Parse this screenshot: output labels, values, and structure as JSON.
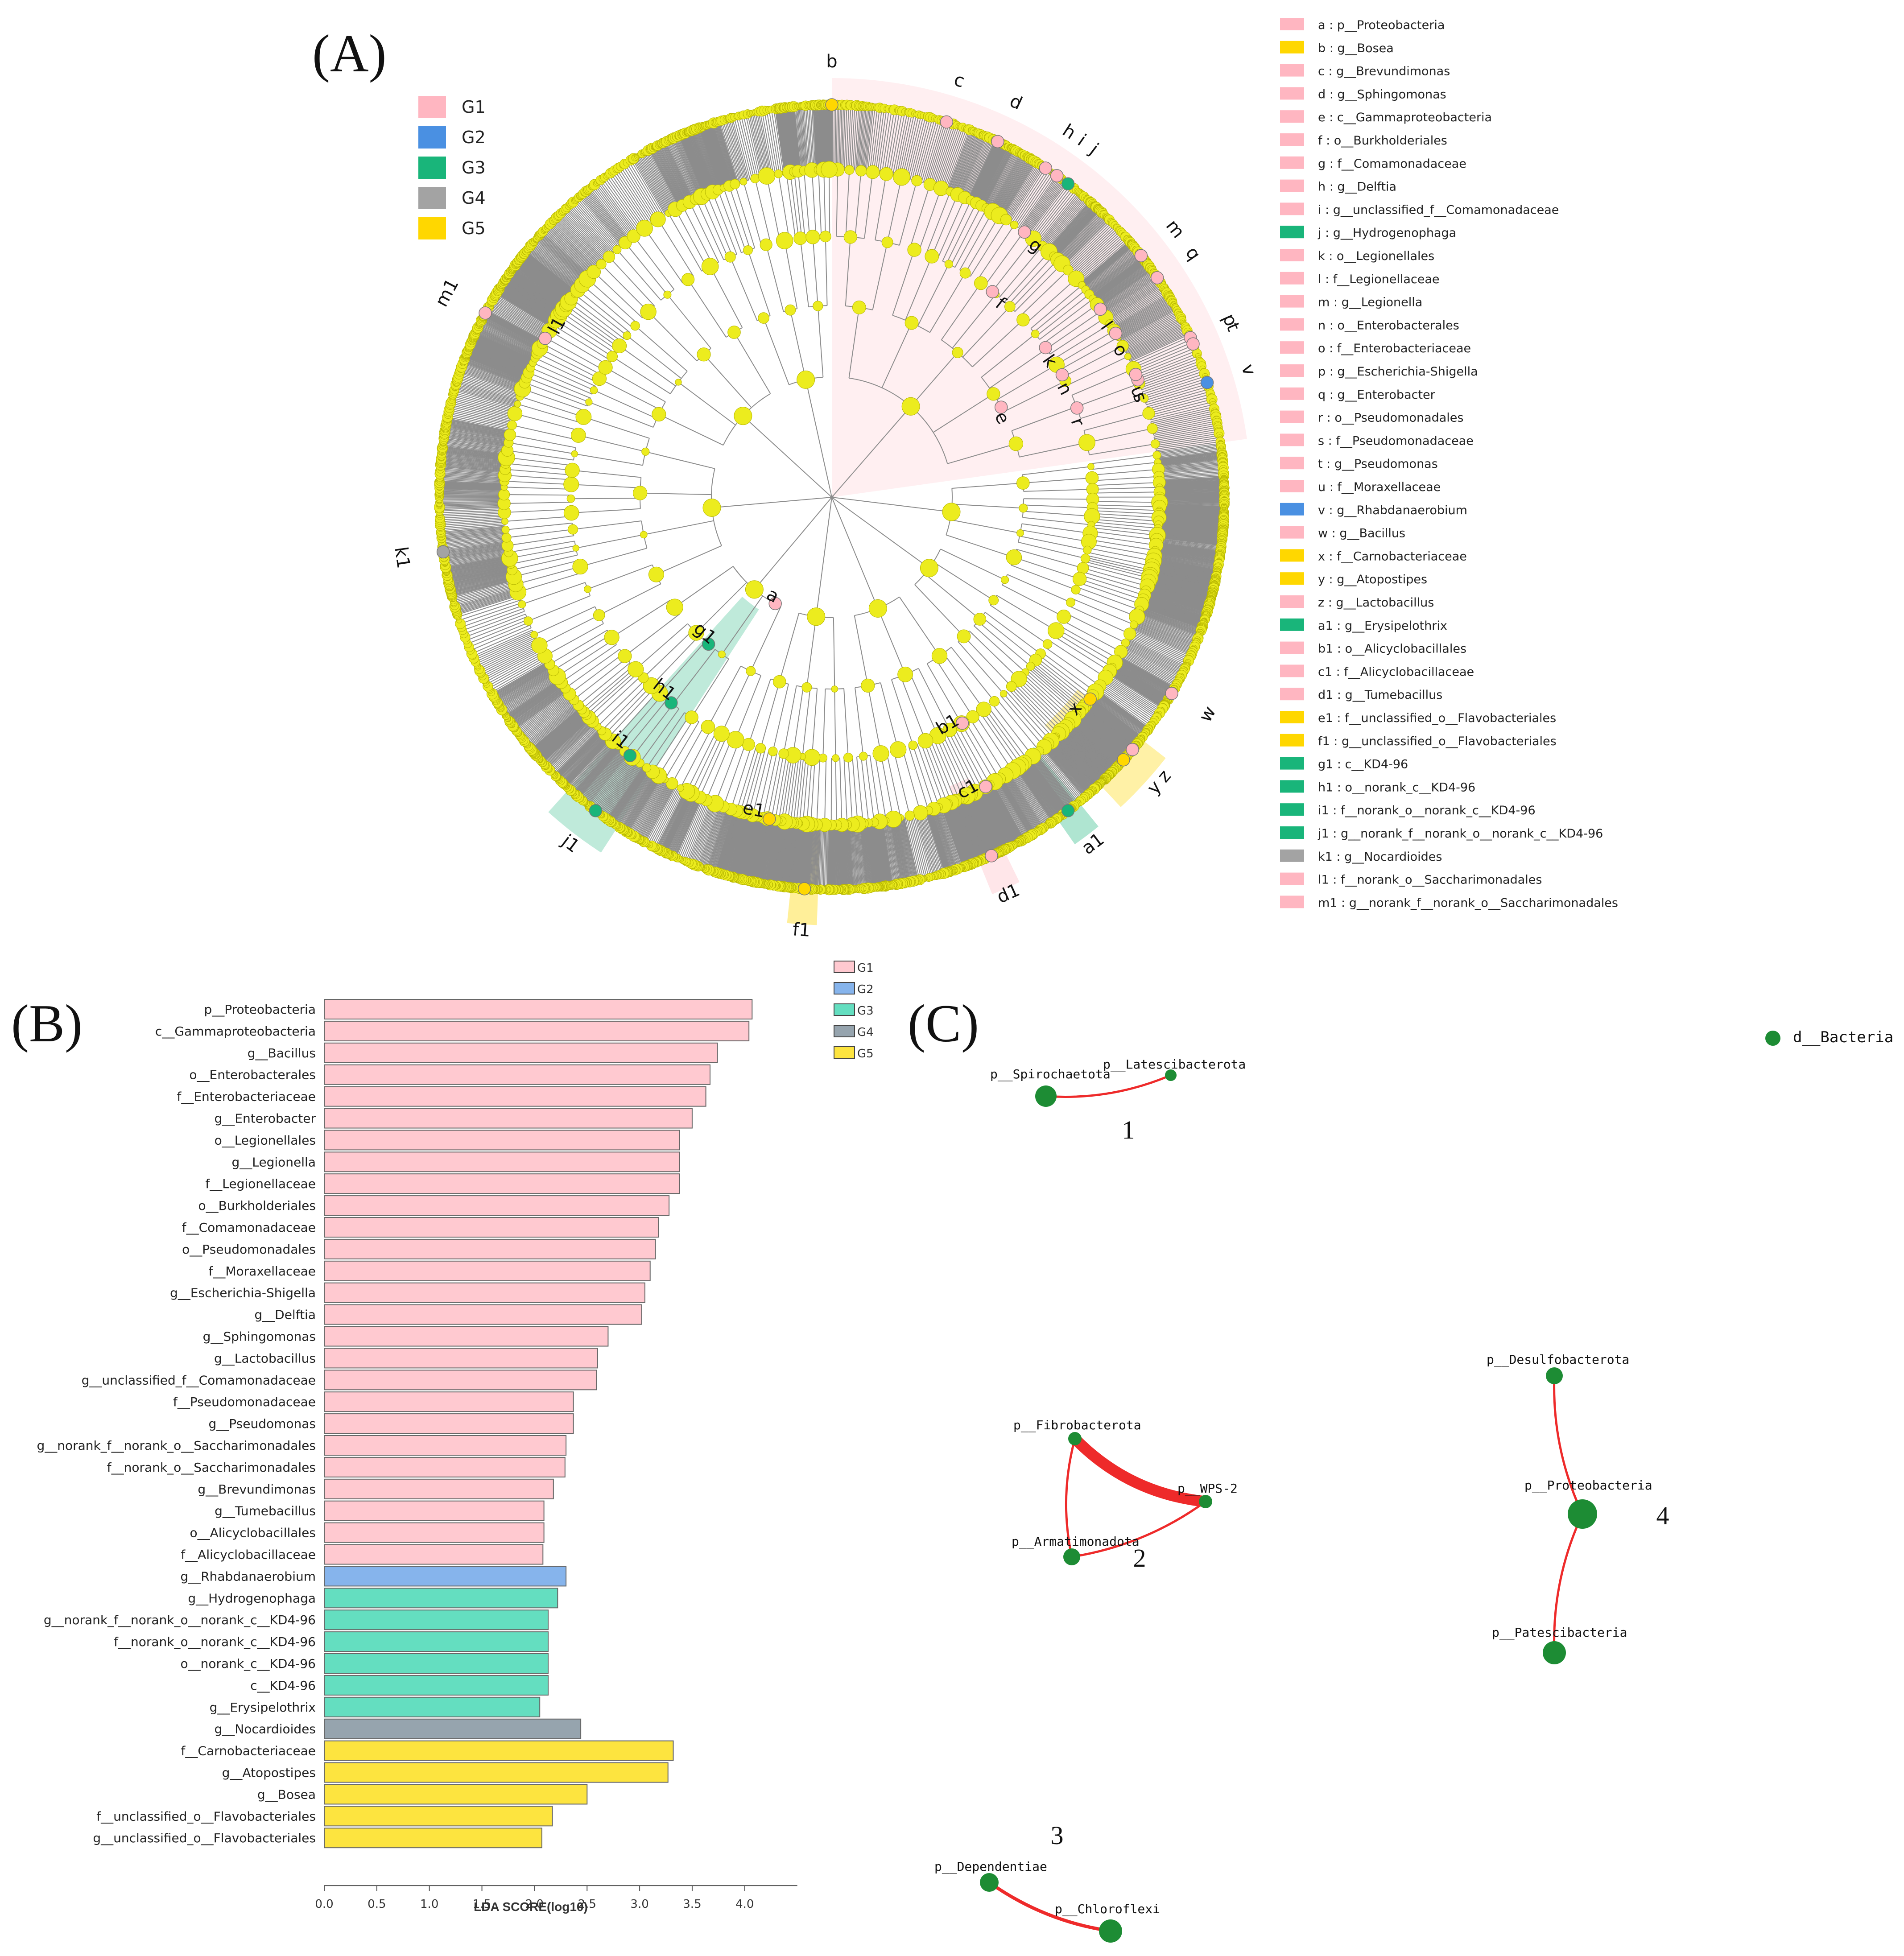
{
  "panels": {
    "a": "(A)",
    "b": "(B)",
    "c": "(C)"
  },
  "colors": {
    "G1": "#ffb6c1",
    "G2": "#4a90e2",
    "G3": "#19b57a",
    "G4": "#a3a3a3",
    "G5": "#ffd700",
    "bar_G1": "#ffc9d0",
    "bar_G2": "#86b4ec",
    "bar_G3": "#64dec0",
    "bar_G4": "#96a4ae",
    "bar_G5": "#fde43f",
    "node": "#ecec1e",
    "branch": "#8c8c8c",
    "net_node": "#1d8c34",
    "net_edge": "#ee2a2a"
  },
  "cladogram": {
    "group_legend": [
      {
        "label": "G1",
        "color": "#ffb6c1"
      },
      {
        "label": "G2",
        "color": "#4a90e2"
      },
      {
        "label": "G3",
        "color": "#19b57a"
      },
      {
        "label": "G4",
        "color": "#a3a3a3"
      },
      {
        "label": "G5",
        "color": "#ffd700"
      }
    ],
    "biomarker_key": [
      {
        "text": "a : p__Proteobacteria",
        "group": "G1"
      },
      {
        "text": "b : g__Bosea",
        "group": "G5"
      },
      {
        "text": "c : g__Brevundimonas",
        "group": "G1"
      },
      {
        "text": "d : g__Sphingomonas",
        "group": "G1"
      },
      {
        "text": "e : c__Gammaproteobacteria",
        "group": "G1"
      },
      {
        "text": "f : o__Burkholderiales",
        "group": "G1"
      },
      {
        "text": "g : f__Comamonadaceae",
        "group": "G1"
      },
      {
        "text": "h : g__Delftia",
        "group": "G1"
      },
      {
        "text": "i : g__unclassified_f__Comamonadaceae",
        "group": "G1"
      },
      {
        "text": "j : g__Hydrogenophaga",
        "group": "G3"
      },
      {
        "text": "k : o__Legionellales",
        "group": "G1"
      },
      {
        "text": "l : f__Legionellaceae",
        "group": "G1"
      },
      {
        "text": "m : g__Legionella",
        "group": "G1"
      },
      {
        "text": "n : o__Enterobacterales",
        "group": "G1"
      },
      {
        "text": "o : f__Enterobacteriaceae",
        "group": "G1"
      },
      {
        "text": "p : g__Escherichia-Shigella",
        "group": "G1"
      },
      {
        "text": "q : g__Enterobacter",
        "group": "G1"
      },
      {
        "text": "r : o__Pseudomonadales",
        "group": "G1"
      },
      {
        "text": "s : f__Pseudomonadaceae",
        "group": "G1"
      },
      {
        "text": "t : g__Pseudomonas",
        "group": "G1"
      },
      {
        "text": "u : f__Moraxellaceae",
        "group": "G1"
      },
      {
        "text": "v : g__Rhabdanaerobium",
        "group": "G2"
      },
      {
        "text": "w : g__Bacillus",
        "group": "G1"
      },
      {
        "text": "x : f__Carnobacteriaceae",
        "group": "G5"
      },
      {
        "text": "y : g__Atopostipes",
        "group": "G5"
      },
      {
        "text": "z : g__Lactobacillus",
        "group": "G1"
      },
      {
        "text": "a1 : g__Erysipelothrix",
        "group": "G3"
      },
      {
        "text": "b1 : o__Alicyclobacillales",
        "group": "G1"
      },
      {
        "text": "c1 : f__Alicyclobacillaceae",
        "group": "G1"
      },
      {
        "text": "d1 : g__Tumebacillus",
        "group": "G1"
      },
      {
        "text": "e1 : f__unclassified_o__Flavobacteriales",
        "group": "G5"
      },
      {
        "text": "f1 : g__unclassified_o__Flavobacteriales",
        "group": "G5"
      },
      {
        "text": "g1 : c__KD4-96",
        "group": "G3"
      },
      {
        "text": "h1 : o__norank_c__KD4-96",
        "group": "G3"
      },
      {
        "text": "i1 : f__norank_o__norank_c__KD4-96",
        "group": "G3"
      },
      {
        "text": "j1 : g__norank_f__norank_o__norank_c__KD4-96",
        "group": "G3"
      },
      {
        "text": "k1 : g__Nocardioides",
        "group": "G4"
      },
      {
        "text": "l1 : f__norank_o__Saccharimonadales",
        "group": "G1"
      },
      {
        "text": "m1 : g__norank_f__norank_o__Saccharimonadales",
        "group": "G1"
      }
    ],
    "markers": [
      {
        "label": "a",
        "angle": 208,
        "level": 1,
        "group": "G1"
      },
      {
        "label": "b",
        "angle": 0,
        "level": 5,
        "group": "G5"
      },
      {
        "label": "c",
        "angle": 17,
        "level": 5,
        "group": "G1"
      },
      {
        "label": "d",
        "angle": 25,
        "level": 5,
        "group": "G1"
      },
      {
        "label": "e",
        "angle": 62,
        "level": 2,
        "group": "G1"
      },
      {
        "label": "f",
        "angle": 38,
        "level": 3,
        "group": "G1"
      },
      {
        "label": "g",
        "angle": 36,
        "level": 4,
        "group": "G1"
      },
      {
        "label": "h",
        "angle": 33,
        "level": 5,
        "group": "G1"
      },
      {
        "label": "i",
        "angle": 35,
        "level": 5,
        "group": "G1"
      },
      {
        "label": "j",
        "angle": 37,
        "level": 5,
        "group": "G3"
      },
      {
        "label": "k",
        "angle": 55,
        "level": 3,
        "group": "G1"
      },
      {
        "label": "l",
        "angle": 55,
        "level": 4,
        "group": "G1"
      },
      {
        "label": "m",
        "angle": 52,
        "level": 5,
        "group": "G1"
      },
      {
        "label": "n",
        "angle": 62,
        "level": 3,
        "group": "G1"
      },
      {
        "label": "o",
        "angle": 60,
        "level": 4,
        "group": "G1"
      },
      {
        "label": "p",
        "angle": 66,
        "level": 5,
        "group": "G1"
      },
      {
        "label": "q",
        "angle": 56,
        "level": 5,
        "group": "G1"
      },
      {
        "label": "r",
        "angle": 70,
        "level": 3,
        "group": "G1"
      },
      {
        "label": "s",
        "angle": 69,
        "level": 4,
        "group": "G1"
      },
      {
        "label": "t",
        "angle": 67,
        "level": 5,
        "group": "G1"
      },
      {
        "label": "u",
        "angle": 68,
        "level": 4,
        "group": "G1"
      },
      {
        "label": "v",
        "angle": 73,
        "level": 5,
        "group": "G2"
      },
      {
        "label": "w",
        "angle": 120,
        "level": 5,
        "group": "G1"
      },
      {
        "label": "x",
        "angle": 128,
        "level": 4,
        "group": "G5"
      },
      {
        "label": "y",
        "angle": 132,
        "level": 5,
        "group": "G5"
      },
      {
        "label": "z",
        "angle": 130,
        "level": 5,
        "group": "G1"
      },
      {
        "label": "a1",
        "angle": 143,
        "level": 5,
        "group": "G3"
      },
      {
        "label": "b1",
        "angle": 150,
        "level": 3,
        "group": "G1"
      },
      {
        "label": "c1",
        "angle": 152,
        "level": 4,
        "group": "G1"
      },
      {
        "label": "d1",
        "angle": 156,
        "level": 5,
        "group": "G1"
      },
      {
        "label": "e1",
        "angle": 191,
        "level": 4,
        "group": "G5"
      },
      {
        "label": "f1",
        "angle": 184,
        "level": 5,
        "group": "G5"
      },
      {
        "label": "g1",
        "angle": 220,
        "level": 2,
        "group": "G3"
      },
      {
        "label": "h1",
        "angle": 218,
        "level": 3,
        "group": "G3"
      },
      {
        "label": "i1",
        "angle": 218,
        "level": 4,
        "group": "G3"
      },
      {
        "label": "j1",
        "angle": 217,
        "level": 5,
        "group": "G3"
      },
      {
        "label": "k1",
        "angle": 262,
        "level": 5,
        "group": "G4"
      },
      {
        "label": "l1",
        "angle": 299,
        "level": 4,
        "group": "G1"
      },
      {
        "label": "m1",
        "angle": 298,
        "level": 5,
        "group": "G1"
      }
    ]
  },
  "chart_data": [
    {
      "type": "bar",
      "orientation": "horizontal",
      "title": "",
      "xlabel": "LDA SCORE(log10)",
      "xlim": [
        0,
        4.5
      ],
      "x_ticks": [
        "0.0",
        "0.5",
        "1.0",
        "1.5",
        "2.0",
        "2.5",
        "3.0",
        "3.5",
        "4.0"
      ],
      "legend": [
        "G1",
        "G2",
        "G3",
        "G4",
        "G5"
      ],
      "categories": [
        "p__Proteobacteria",
        "c__Gammaproteobacteria",
        "g__Bacillus",
        "o__Enterobacterales",
        "f__Enterobacteriaceae",
        "g__Enterobacter",
        "o__Legionellales",
        "g__Legionella",
        "f__Legionellaceae",
        "o__Burkholderiales",
        "f__Comamonadaceae",
        "o__Pseudomonadales",
        "f__Moraxellaceae",
        "g__Escherichia-Shigella",
        "g__Delftia",
        "g__Sphingomonas",
        "g__Lactobacillus",
        "g__unclassified_f__Comamonadaceae",
        "f__Pseudomonadaceae",
        "g__Pseudomonas",
        "g__norank_f__norank_o__Saccharimonadales",
        "f__norank_o__Saccharimonadales",
        "g__Brevundimonas",
        "g__Tumebacillus",
        "o__Alicyclobacillales",
        "f__Alicyclobacillaceae",
        "g__Rhabdanaerobium",
        "g__Hydrogenophaga",
        "g__norank_f__norank_o__norank_c__KD4-96",
        "f__norank_o__norank_c__KD4-96",
        "o__norank_c__KD4-96",
        "c__KD4-96",
        "g__Erysipelothrix",
        "g__Nocardioides",
        "f__Carnobacteriaceae",
        "g__Atopostipes",
        "g__Bosea",
        "f__unclassified_o__Flavobacteriales",
        "g__unclassified_o__Flavobacteriales"
      ],
      "values": [
        4.07,
        4.04,
        3.74,
        3.67,
        3.63,
        3.5,
        3.38,
        3.38,
        3.38,
        3.28,
        3.18,
        3.15,
        3.1,
        3.05,
        3.02,
        2.7,
        2.6,
        2.59,
        2.37,
        2.37,
        2.3,
        2.29,
        2.18,
        2.09,
        2.09,
        2.08,
        2.3,
        2.22,
        2.13,
        2.13,
        2.13,
        2.13,
        2.05,
        2.44,
        3.32,
        3.27,
        2.5,
        2.17,
        2.07
      ],
      "groups": [
        "G1",
        "G1",
        "G1",
        "G1",
        "G1",
        "G1",
        "G1",
        "G1",
        "G1",
        "G1",
        "G1",
        "G1",
        "G1",
        "G1",
        "G1",
        "G1",
        "G1",
        "G1",
        "G1",
        "G1",
        "G1",
        "G1",
        "G1",
        "G1",
        "G1",
        "G1",
        "G2",
        "G3",
        "G3",
        "G3",
        "G3",
        "G3",
        "G3",
        "G4",
        "G5",
        "G5",
        "G5",
        "G5",
        "G5"
      ]
    },
    {
      "type": "network",
      "title": "",
      "nodes": [
        {
          "id": "d__Bacteria",
          "label": "d__Bacteria",
          "component": "legend"
        },
        {
          "id": "p__Spirochaetota",
          "label": "p__Spirochaetota",
          "component": "1"
        },
        {
          "id": "p__Latescibacterota",
          "label": "p__Latescibacterota",
          "component": "1"
        },
        {
          "id": "p__Fibrobacterota",
          "label": "p__Fibrobacterota",
          "component": "2"
        },
        {
          "id": "p__WPS-2",
          "label": "p__WPS-2",
          "component": "2"
        },
        {
          "id": "p__Armatimonadota",
          "label": "p__Armatimonadota",
          "component": "2"
        },
        {
          "id": "p__Dependentiae",
          "label": "p__Dependentiae",
          "component": "3"
        },
        {
          "id": "p__Chloroflexi",
          "label": "p__Chloroflexi",
          "component": "3"
        },
        {
          "id": "p__Desulfobacterota",
          "label": "p__Desulfobacterota",
          "component": "4"
        },
        {
          "id": "p__Proteobacteria",
          "label": "p__Proteobacteria",
          "component": "4"
        },
        {
          "id": "p__Patescibacteria",
          "label": "p__Patescibacteria",
          "component": "4"
        }
      ],
      "edges": [
        {
          "source": "p__Spirochaetota",
          "target": "p__Latescibacterota",
          "weight": 1
        },
        {
          "source": "p__Fibrobacterota",
          "target": "p__WPS-2",
          "weight": 5
        },
        {
          "source": "p__Fibrobacterota",
          "target": "p__Armatimonadota",
          "weight": 1
        },
        {
          "source": "p__Armatimonadota",
          "target": "p__WPS-2",
          "weight": 1
        },
        {
          "source": "p__Dependentiae",
          "target": "p__Chloroflexi",
          "weight": 1.5
        },
        {
          "source": "p__Desulfobacterota",
          "target": "p__Proteobacteria",
          "weight": 1
        },
        {
          "source": "p__Proteobacteria",
          "target": "p__Patescibacteria",
          "weight": 1
        }
      ],
      "component_labels": [
        "1",
        "2",
        "3",
        "4"
      ]
    }
  ]
}
